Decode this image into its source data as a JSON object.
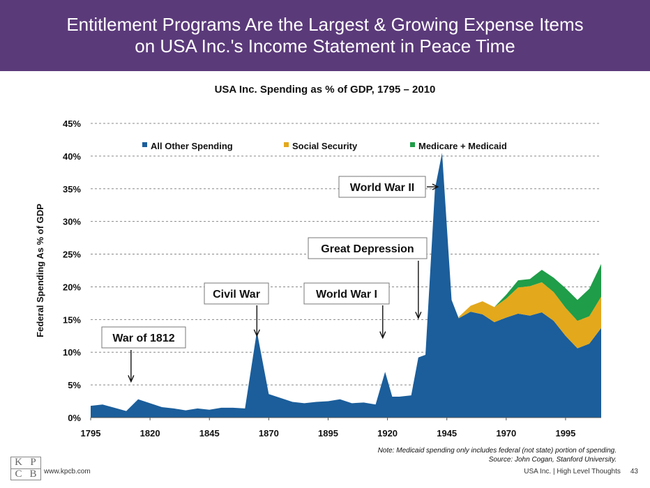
{
  "header": {
    "title": "Entitlement Programs Are the Largest & Growing Expense Items\non USA Inc.'s Income Statement in Peace Time",
    "background": "#5b3a7a"
  },
  "chart_data": {
    "type": "area",
    "stacked": true,
    "title": "USA Inc. Spending as % of GDP, 1795 – 2010",
    "xlabel": "",
    "ylabel": "Federal Spending As % of GDP",
    "xlim": [
      1795,
      2010
    ],
    "ylim": [
      0,
      45
    ],
    "x_ticks": [
      "1795",
      "1820",
      "1845",
      "1870",
      "1895",
      "1920",
      "1945",
      "1970",
      "1995"
    ],
    "y_ticks": [
      "0%",
      "5%",
      "10%",
      "15%",
      "20%",
      "25%",
      "30%",
      "35%",
      "40%",
      "45%"
    ],
    "grid": "horizontal-dashed",
    "legend_position": "top",
    "series": [
      {
        "name": "All Other Spending",
        "color": "#1b5e9b",
        "points": [
          [
            1795,
            1.8
          ],
          [
            1800,
            2.0
          ],
          [
            1805,
            1.5
          ],
          [
            1810,
            1.0
          ],
          [
            1815,
            2.8
          ],
          [
            1820,
            2.2
          ],
          [
            1825,
            1.6
          ],
          [
            1830,
            1.4
          ],
          [
            1835,
            1.1
          ],
          [
            1840,
            1.4
          ],
          [
            1845,
            1.2
          ],
          [
            1850,
            1.5
          ],
          [
            1855,
            1.5
          ],
          [
            1860,
            1.4
          ],
          [
            1865,
            13.2
          ],
          [
            1870,
            3.6
          ],
          [
            1875,
            3.0
          ],
          [
            1880,
            2.4
          ],
          [
            1885,
            2.2
          ],
          [
            1890,
            2.4
          ],
          [
            1895,
            2.5
          ],
          [
            1900,
            2.8
          ],
          [
            1905,
            2.2
          ],
          [
            1910,
            2.3
          ],
          [
            1915,
            2.0
          ],
          [
            1919,
            7.0
          ],
          [
            1922,
            3.2
          ],
          [
            1925,
            3.2
          ],
          [
            1930,
            3.4
          ],
          [
            1933,
            9.2
          ],
          [
            1936,
            9.6
          ],
          [
            1940,
            35.0
          ],
          [
            1943,
            40.5
          ],
          [
            1947,
            18.0
          ],
          [
            1950,
            15.2
          ],
          [
            1955,
            16.2
          ],
          [
            1960,
            15.8
          ],
          [
            1965,
            14.6
          ],
          [
            1970,
            15.3
          ],
          [
            1975,
            15.9
          ],
          [
            1980,
            15.6
          ],
          [
            1985,
            16.1
          ],
          [
            1990,
            14.8
          ],
          [
            1995,
            12.5
          ],
          [
            2000,
            10.6
          ],
          [
            2005,
            11.3
          ],
          [
            2010,
            13.7
          ]
        ]
      },
      {
        "name": "Social Security",
        "color": "#e3a81c",
        "points": [
          [
            1950,
            0.2
          ],
          [
            1955,
            0.9
          ],
          [
            1960,
            2.0
          ],
          [
            1965,
            2.3
          ],
          [
            1970,
            2.9
          ],
          [
            1975,
            4.0
          ],
          [
            1980,
            4.5
          ],
          [
            1985,
            4.6
          ],
          [
            1990,
            4.4
          ],
          [
            1995,
            4.3
          ],
          [
            2000,
            4.2
          ],
          [
            2005,
            4.2
          ],
          [
            2010,
            4.8
          ]
        ]
      },
      {
        "name": "Medicare + Medicaid",
        "color": "#1f9d48",
        "points": [
          [
            1965,
            0.0
          ],
          [
            1970,
            0.6
          ],
          [
            1975,
            1.1
          ],
          [
            1980,
            1.1
          ],
          [
            1985,
            1.9
          ],
          [
            1990,
            2.2
          ],
          [
            1995,
            3.0
          ],
          [
            2000,
            3.2
          ],
          [
            2005,
            4.2
          ],
          [
            2010,
            5.0
          ]
        ]
      }
    ],
    "annotations": [
      {
        "label": "War of 1812",
        "year": 1812,
        "value": 5.5
      },
      {
        "label": "Civil War",
        "year": 1865,
        "value": 12.5
      },
      {
        "label": "World War I",
        "year": 1918,
        "value": 12.2
      },
      {
        "label": "Great Depression",
        "year": 1933,
        "value": 15.2
      },
      {
        "label": "World War II",
        "year": 1943,
        "value": 35.0
      }
    ]
  },
  "footnote": {
    "line1": "Note: Medicaid spending only includes federal (not state) portion of spending.",
    "line2": "Source: John Cogan, Stanford University."
  },
  "footer": {
    "logo_letters": [
      "K",
      "P",
      "C",
      "B"
    ],
    "website": "www.kpcb.com",
    "doc_title": "USA Inc. | High Level Thoughts",
    "page_number": "43"
  }
}
